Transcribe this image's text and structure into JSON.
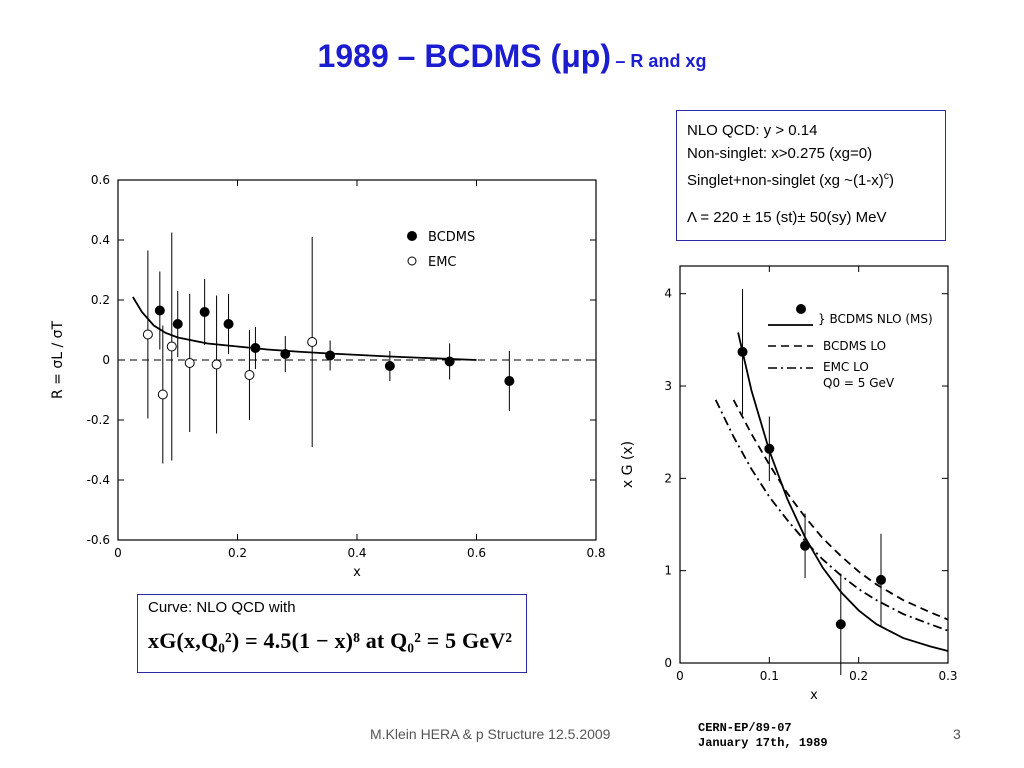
{
  "slide": {
    "title_main": "1989 – BCDMS (μp)",
    "title_sub": "– R and xg",
    "footer": "M.Klein HERA & p Structure 12.5.2009",
    "page": "3"
  },
  "nlo_box": {
    "line1": "NLO QCD: y > 0.14",
    "line2": "Non-singlet: x>0.275 (xg=0)",
    "line3_pre": "Singlet+non-singlet (xg ~(1-x)",
    "line3_sup": "c",
    "line3_post": ")",
    "line4": "Λ = 220 ± 15 (st)± 50(sy) MeV"
  },
  "curve_box": {
    "label": "Curve: NLO QCD with",
    "formula": "xG(x,Q₀²)  =  4.5(1 − x)⁸  at  Q₀²  =  5 GeV²"
  },
  "cern": {
    "line1": "CERN-EP/89-07",
    "line2": "January 17th, 1989"
  },
  "chart_data": [
    {
      "type": "scatter",
      "xlabel": "x",
      "ylabel": "R = σL / σT",
      "xlim": [
        0,
        0.8
      ],
      "ylim": [
        -0.6,
        0.6
      ],
      "xticks": [
        "0",
        "0.2",
        "0.4",
        "0.6",
        "0.8"
      ],
      "yticks": [
        "-0.6",
        "-0.4",
        "-0.2",
        "0",
        "0.2",
        "0.4",
        "0.6"
      ],
      "legend_position": "top-right",
      "series": [
        {
          "name": "BCDMS",
          "marker": "filled",
          "x": [
            0.07,
            0.1,
            0.145,
            0.185,
            0.23,
            0.28,
            0.355,
            0.455,
            0.555,
            0.655
          ],
          "y": [
            0.165,
            0.12,
            0.16,
            0.12,
            0.04,
            0.02,
            0.015,
            -0.02,
            -0.005,
            -0.07
          ],
          "err": [
            0.13,
            0.11,
            0.11,
            0.1,
            0.07,
            0.06,
            0.05,
            0.05,
            0.06,
            0.1
          ]
        },
        {
          "name": "EMC",
          "marker": "open",
          "x": [
            0.05,
            0.075,
            0.09,
            0.12,
            0.165,
            0.22,
            0.325
          ],
          "y": [
            0.085,
            -0.115,
            0.045,
            -0.01,
            -0.015,
            -0.05,
            0.06
          ],
          "err": [
            0.28,
            0.23,
            0.38,
            0.23,
            0.23,
            0.15,
            0.35
          ]
        }
      ],
      "curves": [
        {
          "x": [
            0.025,
            0.04,
            0.06,
            0.08,
            0.1,
            0.15,
            0.2,
            0.25,
            0.3,
            0.35,
            0.4,
            0.45,
            0.5,
            0.55,
            0.6
          ],
          "y": [
            0.21,
            0.16,
            0.115,
            0.09,
            0.075,
            0.055,
            0.045,
            0.035,
            0.028,
            0.022,
            0.017,
            0.012,
            0.008,
            0.004,
            0.0
          ],
          "style": "solid"
        }
      ],
      "reference_line": {
        "y": 0,
        "style": "dashed"
      }
    },
    {
      "type": "scatter",
      "xlabel": "x",
      "ylabel": "x G (x)",
      "xlim": [
        0,
        0.3
      ],
      "ylim": [
        0,
        4.3
      ],
      "xticks": [
        "0",
        "0.1",
        "0.2",
        "0.3"
      ],
      "yticks": [
        "0",
        "1",
        "2",
        "3",
        "4"
      ],
      "legend_position": "top-right",
      "legend": {
        "bcdms_nlo": "BCDMS NLO (MS)",
        "bcdms_lo": "BCDMS LO",
        "emc_lo": "EMC LO",
        "q0": "Q0 = 5 GeV"
      },
      "series": [
        {
          "name": "BCDMS NLO (MS)",
          "marker": "filled",
          "x": [
            0.07,
            0.1,
            0.14,
            0.18,
            0.225
          ],
          "y": [
            3.37,
            2.32,
            1.27,
            0.42,
            0.9
          ],
          "err": [
            0.68,
            0.35,
            0.35,
            0.55,
            0.5
          ]
        }
      ],
      "curves": [
        {
          "name": "BCDMS NLO (MS)",
          "style": "solid",
          "x": [
            0.065,
            0.08,
            0.1,
            0.12,
            0.14,
            0.16,
            0.18,
            0.2,
            0.22,
            0.25,
            0.28,
            0.3
          ],
          "y": [
            3.58,
            2.95,
            2.3,
            1.78,
            1.36,
            1.03,
            0.77,
            0.57,
            0.42,
            0.27,
            0.18,
            0.13
          ]
        },
        {
          "name": "BCDMS LO",
          "style": "dashed",
          "x": [
            0.06,
            0.08,
            0.1,
            0.12,
            0.14,
            0.16,
            0.18,
            0.2,
            0.22,
            0.25,
            0.28,
            0.3
          ],
          "y": [
            2.85,
            2.48,
            2.15,
            1.84,
            1.58,
            1.35,
            1.16,
            0.99,
            0.85,
            0.68,
            0.55,
            0.47
          ]
        },
        {
          "name": "EMC LO",
          "style": "dashdot",
          "x": [
            0.04,
            0.06,
            0.08,
            0.1,
            0.12,
            0.14,
            0.16,
            0.18,
            0.2,
            0.22,
            0.25,
            0.28,
            0.3
          ],
          "y": [
            2.85,
            2.45,
            2.1,
            1.8,
            1.55,
            1.32,
            1.12,
            0.95,
            0.8,
            0.68,
            0.53,
            0.42,
            0.35
          ]
        }
      ]
    }
  ]
}
